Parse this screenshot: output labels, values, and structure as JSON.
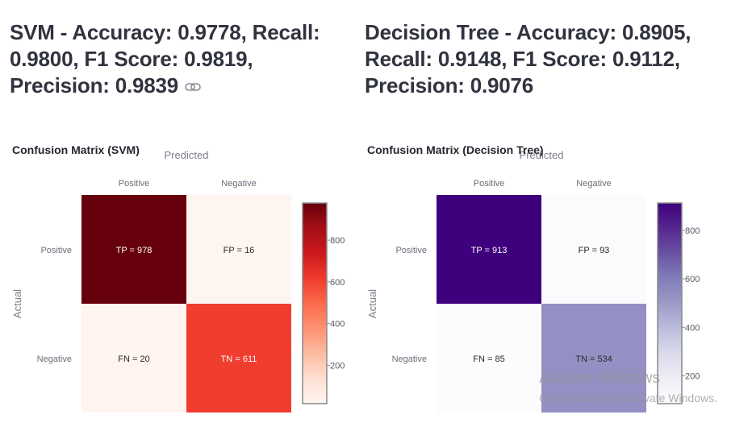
{
  "headers": {
    "svm": "SVM - Accuracy: 0.9778, Recall: 0.9800, F1 Score: 0.9819, Precision: 0.9839",
    "dt": "Decision Tree - Accuracy: 0.8905, Recall: 0.9148, F1 Score: 0.9112, Precision: 0.9076"
  },
  "icons": {
    "anchor": "link-icon"
  },
  "watermark": {
    "title": "Activate Windows",
    "subtitle": "Go to Settings to activate Windows."
  },
  "chart_data": [
    {
      "type": "heatmap",
      "title": "Confusion Matrix (SVM)",
      "xlabel": "Predicted",
      "ylabel": "Actual",
      "x": [
        "Positive",
        "Negative"
      ],
      "y": [
        "Positive",
        "Negative"
      ],
      "z": [
        [
          978,
          16
        ],
        [
          20,
          611
        ]
      ],
      "text": [
        [
          "TP = 978",
          "FP = 16"
        ],
        [
          "FN = 20",
          "TN = 611"
        ]
      ],
      "colorscale": "Reds",
      "zrange": [
        16,
        978
      ],
      "colorbar_ticks": [
        200,
        400,
        600,
        800
      ]
    },
    {
      "type": "heatmap",
      "title": "Confusion Matrix (Decision Tree)",
      "xlabel": "Predicted",
      "ylabel": "Actual",
      "x": [
        "Positive",
        "Negative"
      ],
      "y": [
        "Positive",
        "Negative"
      ],
      "z": [
        [
          913,
          93
        ],
        [
          85,
          534
        ]
      ],
      "text": [
        [
          "TP = 913",
          "FP = 93"
        ],
        [
          "FN = 85",
          "TN = 534"
        ]
      ],
      "colorscale": "Purples",
      "zrange": [
        85,
        913
      ],
      "colorbar_ticks": [
        200,
        400,
        600,
        800
      ]
    }
  ]
}
